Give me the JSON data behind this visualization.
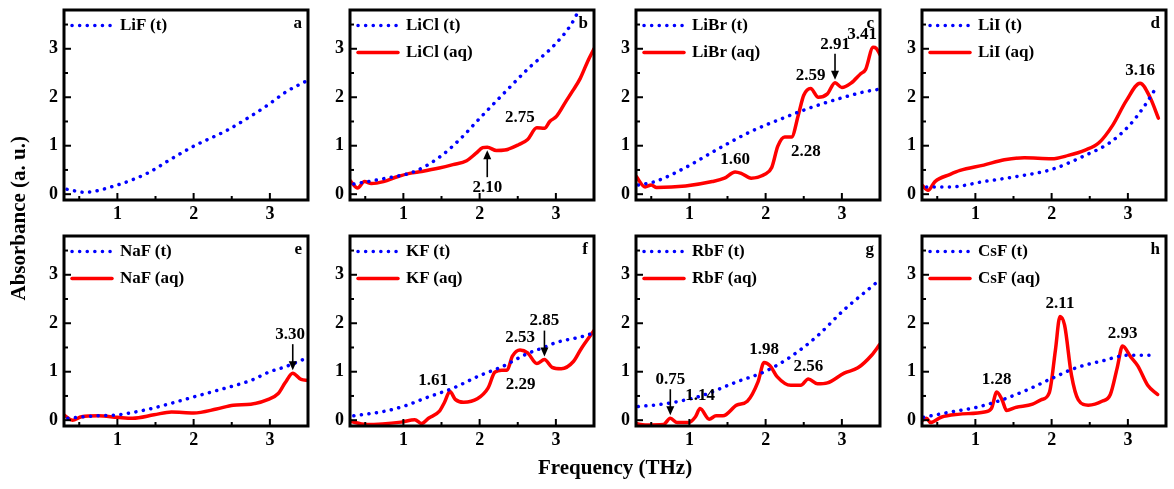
{
  "chart_data": [
    {
      "type": "line",
      "title": "a",
      "ylabel": "Absorbance (a. u.)",
      "legend": "top left",
      "xlim": [
        0.3,
        3.5
      ],
      "ylim": [
        -0.12,
        3.8
      ],
      "xticks": [
        {
          "value": 0.5,
          "label": null
        },
        1,
        {
          "value": 1.5,
          "label": null
        },
        2,
        {
          "value": 2.5,
          "label": null
        },
        3
      ],
      "yticks": [
        0,
        {
          "value": 0.5,
          "label": null
        },
        1,
        {
          "value": 1.5,
          "label": null
        },
        2,
        {
          "value": 2.5,
          "label": null
        },
        3,
        {
          "value": 3.5,
          "label": null
        }
      ],
      "series": [
        {
          "name": "LiF (t)",
          "color": "#0000ff",
          "line_style": "dotted",
          "x": [
            0.34,
            0.57,
            1.0,
            1.39,
            1.71,
            2.0,
            2.44,
            2.75,
            3.0,
            3.21,
            3.46
          ],
          "values": [
            0.1,
            0.04,
            0.19,
            0.43,
            0.73,
            0.99,
            1.32,
            1.61,
            1.87,
            2.11,
            2.32
          ]
        }
      ]
    },
    {
      "type": "line",
      "title": "b",
      "legend": "top left",
      "xlim": [
        0.3,
        3.5
      ],
      "ylim": [
        -0.12,
        3.8
      ],
      "xticks": [
        {
          "value": 0.5,
          "label": null
        },
        1,
        {
          "value": 1.5,
          "label": null
        },
        2,
        {
          "value": 2.5,
          "label": null
        },
        3
      ],
      "yticks": [
        0,
        {
          "value": 0.5,
          "label": null
        },
        1,
        {
          "value": 1.5,
          "label": null
        },
        2,
        {
          "value": 2.5,
          "label": null
        },
        3,
        {
          "value": 3.5,
          "label": null
        }
      ],
      "annotations": [
        {
          "text": "2.10",
          "x": 2.1,
          "y": 0.97
        },
        {
          "text": "2.75",
          "x": 2.75,
          "y": 1.37
        }
      ],
      "series": [
        {
          "name": "LiCl (t)",
          "color": "#0000ff",
          "line_style": "dotted",
          "x": [
            0.35,
            0.74,
            1.15,
            1.47,
            1.74,
            2.01,
            2.33,
            2.65,
            2.97,
            3.2,
            3.29
          ],
          "values": [
            0.21,
            0.32,
            0.47,
            0.76,
            1.13,
            1.58,
            2.1,
            2.61,
            3.06,
            3.5,
            3.76
          ]
        },
        {
          "name": "LiCl (aq)",
          "color": "#ff0000",
          "line_style": "solid",
          "x": [
            0.3,
            0.4,
            0.49,
            0.58,
            0.74,
            0.92,
            1.08,
            1.24,
            1.47,
            1.65,
            1.83,
            1.95,
            2.04,
            2.1,
            2.22,
            2.33,
            2.51,
            2.63,
            2.75,
            2.85,
            2.92,
            3.01,
            3.13,
            3.22,
            3.32,
            3.42,
            3.5
          ],
          "values": [
            0.28,
            0.13,
            0.26,
            0.22,
            0.26,
            0.36,
            0.43,
            0.47,
            0.54,
            0.61,
            0.69,
            0.84,
            0.96,
            0.97,
            0.9,
            0.91,
            1.02,
            1.13,
            1.37,
            1.36,
            1.5,
            1.61,
            1.91,
            2.13,
            2.39,
            2.75,
            3.0
          ]
        }
      ]
    },
    {
      "type": "line",
      "title": "c",
      "legend": "top left",
      "xlim": [
        0.3,
        3.5
      ],
      "ylim": [
        -0.12,
        3.8
      ],
      "xticks": [
        {
          "value": 0.5,
          "label": null
        },
        1,
        {
          "value": 1.5,
          "label": null
        },
        2,
        {
          "value": 2.5,
          "label": null
        },
        3
      ],
      "yticks": [
        0,
        {
          "value": 0.5,
          "label": null
        },
        1,
        {
          "value": 1.5,
          "label": null
        },
        2,
        {
          "value": 2.5,
          "label": null
        },
        3,
        {
          "value": 3.5,
          "label": null
        }
      ],
      "annotations": [
        {
          "text": "1.60",
          "x": 1.6,
          "y": 0.46
        },
        {
          "text": "2.28",
          "x": 2.28,
          "y": 1.18
        },
        {
          "text": "2.59",
          "x": 2.59,
          "y": 2.18
        },
        {
          "text": "2.91",
          "x": 2.91,
          "y": 2.3
        },
        {
          "text": "3.41",
          "x": 3.41,
          "y": 3.03
        }
      ],
      "series": [
        {
          "name": "LiBr (t)",
          "color": "#0000ff",
          "line_style": "dotted",
          "x": [
            0.33,
            0.55,
            0.95,
            1.35,
            1.79,
            2.23,
            2.58,
            2.94,
            3.29,
            3.47
          ],
          "values": [
            0.19,
            0.26,
            0.55,
            0.91,
            1.28,
            1.57,
            1.78,
            1.96,
            2.11,
            2.16
          ]
        },
        {
          "name": "LiBr (aq)",
          "color": "#ff0000",
          "line_style": "solid",
          "x": [
            0.3,
            0.42,
            0.5,
            0.57,
            0.95,
            1.3,
            1.46,
            1.6,
            1.68,
            1.81,
            1.99,
            2.08,
            2.16,
            2.25,
            2.34,
            2.43,
            2.5,
            2.59,
            2.69,
            2.81,
            2.91,
            3.0,
            3.12,
            3.25,
            3.31,
            3.41,
            3.45,
            3.5
          ],
          "values": [
            0.37,
            0.15,
            0.19,
            0.14,
            0.17,
            0.26,
            0.33,
            0.46,
            0.43,
            0.33,
            0.41,
            0.55,
            0.99,
            1.18,
            1.18,
            1.64,
            2.04,
            2.18,
            2.0,
            2.07,
            2.3,
            2.2,
            2.29,
            2.49,
            2.57,
            3.03,
            3.01,
            2.88
          ]
        }
      ]
    },
    {
      "type": "line",
      "title": "d",
      "legend": "top left",
      "xlim": [
        0.3,
        3.5
      ],
      "ylim": [
        -0.12,
        3.8
      ],
      "xticks": [
        {
          "value": 0.5,
          "label": null
        },
        1,
        {
          "value": 1.5,
          "label": null
        },
        2,
        {
          "value": 2.5,
          "label": null
        },
        3
      ],
      "yticks": [
        0,
        {
          "value": 0.5,
          "label": null
        },
        1,
        {
          "value": 1.5,
          "label": null
        },
        2,
        {
          "value": 2.5,
          "label": null
        },
        3,
        {
          "value": 3.5,
          "label": null
        }
      ],
      "annotations": [
        {
          "text": "3.16",
          "x": 3.16,
          "y": 2.29
        }
      ],
      "series": [
        {
          "name": "LiI (t)",
          "color": "#0000ff",
          "line_style": "dotted",
          "x": [
            0.36,
            0.67,
            1.11,
            1.56,
            2.0,
            2.44,
            2.76,
            3.02,
            3.2,
            3.38
          ],
          "values": [
            0.15,
            0.15,
            0.26,
            0.37,
            0.51,
            0.8,
            1.06,
            1.42,
            1.78,
            2.22
          ]
        },
        {
          "name": "LiI (aq)",
          "color": "#ff0000",
          "line_style": "solid",
          "x": [
            0.3,
            0.38,
            0.47,
            0.67,
            0.8,
            1.11,
            1.38,
            1.64,
            2.0,
            2.22,
            2.44,
            2.62,
            2.8,
            2.98,
            3.16,
            3.29,
            3.4
          ],
          "values": [
            0.19,
            0.08,
            0.26,
            0.41,
            0.49,
            0.6,
            0.71,
            0.75,
            0.73,
            0.8,
            0.91,
            1.06,
            1.42,
            1.93,
            2.29,
            2.0,
            1.57
          ]
        }
      ]
    },
    {
      "type": "line",
      "title": "e",
      "legend": "top left",
      "xlim": [
        0.3,
        3.5
      ],
      "ylim": [
        -0.12,
        3.8
      ],
      "xticks": [
        {
          "value": 0.5,
          "label": null
        },
        1,
        {
          "value": 1.5,
          "label": null
        },
        2,
        {
          "value": 2.5,
          "label": null
        },
        3
      ],
      "yticks": [
        0,
        {
          "value": 0.5,
          "label": null
        },
        1,
        {
          "value": 1.5,
          "label": null
        },
        2,
        {
          "value": 2.5,
          "label": null
        },
        3,
        {
          "value": 3.5,
          "label": null
        }
      ],
      "annotations": [
        {
          "text": "3.30",
          "x": 3.3,
          "y": 0.97
        }
      ],
      "series": [
        {
          "name": "NaF (t)",
          "color": "#0000ff",
          "line_style": "dotted",
          "x": [
            0.35,
            0.71,
            1.0,
            1.39,
            1.71,
            2.0,
            2.39,
            2.75,
            3.0,
            3.2,
            3.48
          ],
          "values": [
            0.04,
            0.09,
            0.11,
            0.22,
            0.35,
            0.48,
            0.65,
            0.82,
            1.0,
            1.1,
            1.28
          ]
        },
        {
          "name": "NaF (aq)",
          "color": "#ff0000",
          "line_style": "solid",
          "x": [
            0.3,
            0.41,
            0.53,
            0.75,
            1.0,
            1.2,
            1.48,
            1.71,
            2.0,
            2.3,
            2.52,
            2.75,
            2.98,
            3.11,
            3.2,
            3.3,
            3.41,
            3.5
          ],
          "values": [
            0.11,
            0.0,
            0.07,
            0.09,
            0.06,
            0.04,
            0.11,
            0.17,
            0.15,
            0.23,
            0.31,
            0.33,
            0.43,
            0.55,
            0.77,
            0.97,
            0.84,
            0.82
          ]
        }
      ]
    },
    {
      "type": "line",
      "title": "f",
      "xlabel": "Frequency (THz)",
      "legend": "top left",
      "xlim": [
        0.3,
        3.5
      ],
      "ylim": [
        -0.12,
        3.8
      ],
      "xticks": [
        {
          "value": 0.5,
          "label": null
        },
        1,
        {
          "value": 1.5,
          "label": null
        },
        2,
        {
          "value": 2.5,
          "label": null
        },
        3
      ],
      "yticks": [
        0,
        {
          "value": 0.5,
          "label": null
        },
        1,
        {
          "value": 1.5,
          "label": null
        },
        2,
        {
          "value": 2.5,
          "label": null
        },
        3,
        {
          "value": 3.5,
          "label": null
        }
      ],
      "annotations": [
        {
          "text": "1.61",
          "x": 1.61,
          "y": 0.59
        },
        {
          "text": "2.29",
          "x": 2.29,
          "y": 1.03
        },
        {
          "text": "2.53",
          "x": 2.53,
          "y": 1.45
        },
        {
          "text": "2.85",
          "x": 2.85,
          "y": 1.25
        }
      ],
      "series": [
        {
          "name": "KF (t)",
          "color": "#0000ff",
          "line_style": "dotted",
          "x": [
            0.35,
            0.74,
            1.01,
            1.33,
            1.65,
            2.0,
            2.29,
            2.61,
            2.84,
            3.02,
            3.33,
            3.5
          ],
          "values": [
            0.09,
            0.18,
            0.29,
            0.48,
            0.66,
            0.92,
            1.1,
            1.36,
            1.5,
            1.61,
            1.72,
            1.8
          ]
        },
        {
          "name": "KF (aq)",
          "color": "#ff0000",
          "line_style": "solid",
          "x": [
            0.3,
            0.51,
            0.97,
            1.15,
            1.24,
            1.33,
            1.47,
            1.54,
            1.61,
            1.68,
            1.79,
            1.97,
            2.11,
            2.2,
            2.29,
            2.36,
            2.43,
            2.53,
            2.63,
            2.75,
            2.85,
            2.95,
            3.07,
            3.23,
            3.33,
            3.5
          ],
          "values": [
            -0.02,
            -0.09,
            -0.04,
            0.01,
            -0.07,
            0.04,
            0.18,
            0.37,
            0.59,
            0.43,
            0.37,
            0.44,
            0.66,
            0.99,
            1.03,
            1.03,
            1.32,
            1.45,
            1.39,
            1.17,
            1.25,
            1.09,
            1.06,
            1.21,
            1.47,
            1.85
          ]
        }
      ]
    },
    {
      "type": "line",
      "title": "g",
      "legend": "top left",
      "xlim": [
        0.3,
        3.5
      ],
      "ylim": [
        -0.12,
        3.8
      ],
      "xticks": [
        {
          "value": 0.5,
          "label": null
        },
        1,
        {
          "value": 1.5,
          "label": null
        },
        2,
        {
          "value": 2.5,
          "label": null
        },
        3
      ],
      "yticks": [
        0,
        {
          "value": 0.5,
          "label": null
        },
        1,
        {
          "value": 1.5,
          "label": null
        },
        2,
        {
          "value": 2.5,
          "label": null
        },
        3,
        {
          "value": 3.5,
          "label": null
        }
      ],
      "annotations": [
        {
          "text": "0.75",
          "x": 0.75,
          "y": 0.04
        },
        {
          "text": "1.14",
          "x": 1.14,
          "y": 0.24
        },
        {
          "text": "1.98",
          "x": 1.98,
          "y": 1.19
        },
        {
          "text": "2.56",
          "x": 2.56,
          "y": 0.85
        }
      ],
      "series": [
        {
          "name": "RbF (t)",
          "color": "#0000ff",
          "line_style": "dotted",
          "x": [
            0.33,
            0.73,
            1.17,
            1.62,
            2.0,
            2.32,
            2.68,
            3.03,
            3.34,
            3.5
          ],
          "values": [
            0.28,
            0.35,
            0.51,
            0.79,
            1.01,
            1.3,
            1.74,
            2.28,
            2.69,
            2.9
          ]
        },
        {
          "name": "RbF (aq)",
          "color": "#ff0000",
          "line_style": "solid",
          "x": [
            0.3,
            0.42,
            0.66,
            0.75,
            0.84,
            0.99,
            1.08,
            1.14,
            1.26,
            1.35,
            1.44,
            1.62,
            1.76,
            1.9,
            1.98,
            2.06,
            2.15,
            2.33,
            2.46,
            2.56,
            2.68,
            2.81,
            3.03,
            3.21,
            3.39,
            3.5
          ],
          "values": [
            -0.07,
            -0.1,
            -0.09,
            0.04,
            -0.05,
            -0.05,
            0.07,
            0.24,
            0.02,
            0.09,
            0.09,
            0.31,
            0.39,
            0.79,
            1.19,
            1.12,
            0.9,
            0.72,
            0.72,
            0.85,
            0.75,
            0.77,
            0.97,
            1.08,
            1.34,
            1.57
          ]
        }
      ]
    },
    {
      "type": "line",
      "title": "h",
      "legend": "top left",
      "xlim": [
        0.3,
        3.5
      ],
      "ylim": [
        -0.12,
        3.8
      ],
      "xticks": [
        {
          "value": 0.5,
          "label": null
        },
        1,
        {
          "value": 1.5,
          "label": null
        },
        2,
        {
          "value": 2.5,
          "label": null
        },
        3
      ],
      "yticks": [
        0,
        {
          "value": 0.5,
          "label": null
        },
        1,
        {
          "value": 1.5,
          "label": null
        },
        2,
        {
          "value": 2.5,
          "label": null
        },
        3,
        {
          "value": 3.5,
          "label": null
        }
      ],
      "annotations": [
        {
          "text": "1.28",
          "x": 1.28,
          "y": 0.58
        },
        {
          "text": "2.11",
          "x": 2.11,
          "y": 2.14
        },
        {
          "text": "2.93",
          "x": 2.93,
          "y": 1.53
        }
      ],
      "series": [
        {
          "name": "CsF (t)",
          "color": "#0000ff",
          "line_style": "dotted",
          "x": [
            0.32,
            0.68,
            1.0,
            1.35,
            1.7,
            2.0,
            2.32,
            2.68,
            3.0,
            3.26,
            3.35
          ],
          "values": [
            0.06,
            0.17,
            0.26,
            0.42,
            0.64,
            0.86,
            1.08,
            1.23,
            1.34,
            1.34,
            1.35
          ]
        },
        {
          "name": "CsF (aq)",
          "color": "#ff0000",
          "line_style": "solid",
          "x": [
            0.3,
            0.36,
            0.41,
            0.55,
            0.77,
            1.12,
            1.21,
            1.28,
            1.35,
            1.41,
            1.52,
            1.75,
            1.86,
            1.97,
            2.05,
            2.11,
            2.17,
            2.26,
            2.35,
            2.48,
            2.66,
            2.77,
            2.86,
            2.93,
            3.04,
            3.13,
            3.26,
            3.39
          ],
          "values": [
            -0.01,
            0.04,
            -0.05,
            0.06,
            0.12,
            0.17,
            0.24,
            0.58,
            0.42,
            0.2,
            0.26,
            0.33,
            0.42,
            0.57,
            1.45,
            2.14,
            1.96,
            0.93,
            0.42,
            0.31,
            0.39,
            0.53,
            1.08,
            1.53,
            1.3,
            1.12,
            0.72,
            0.53
          ]
        }
      ]
    }
  ]
}
